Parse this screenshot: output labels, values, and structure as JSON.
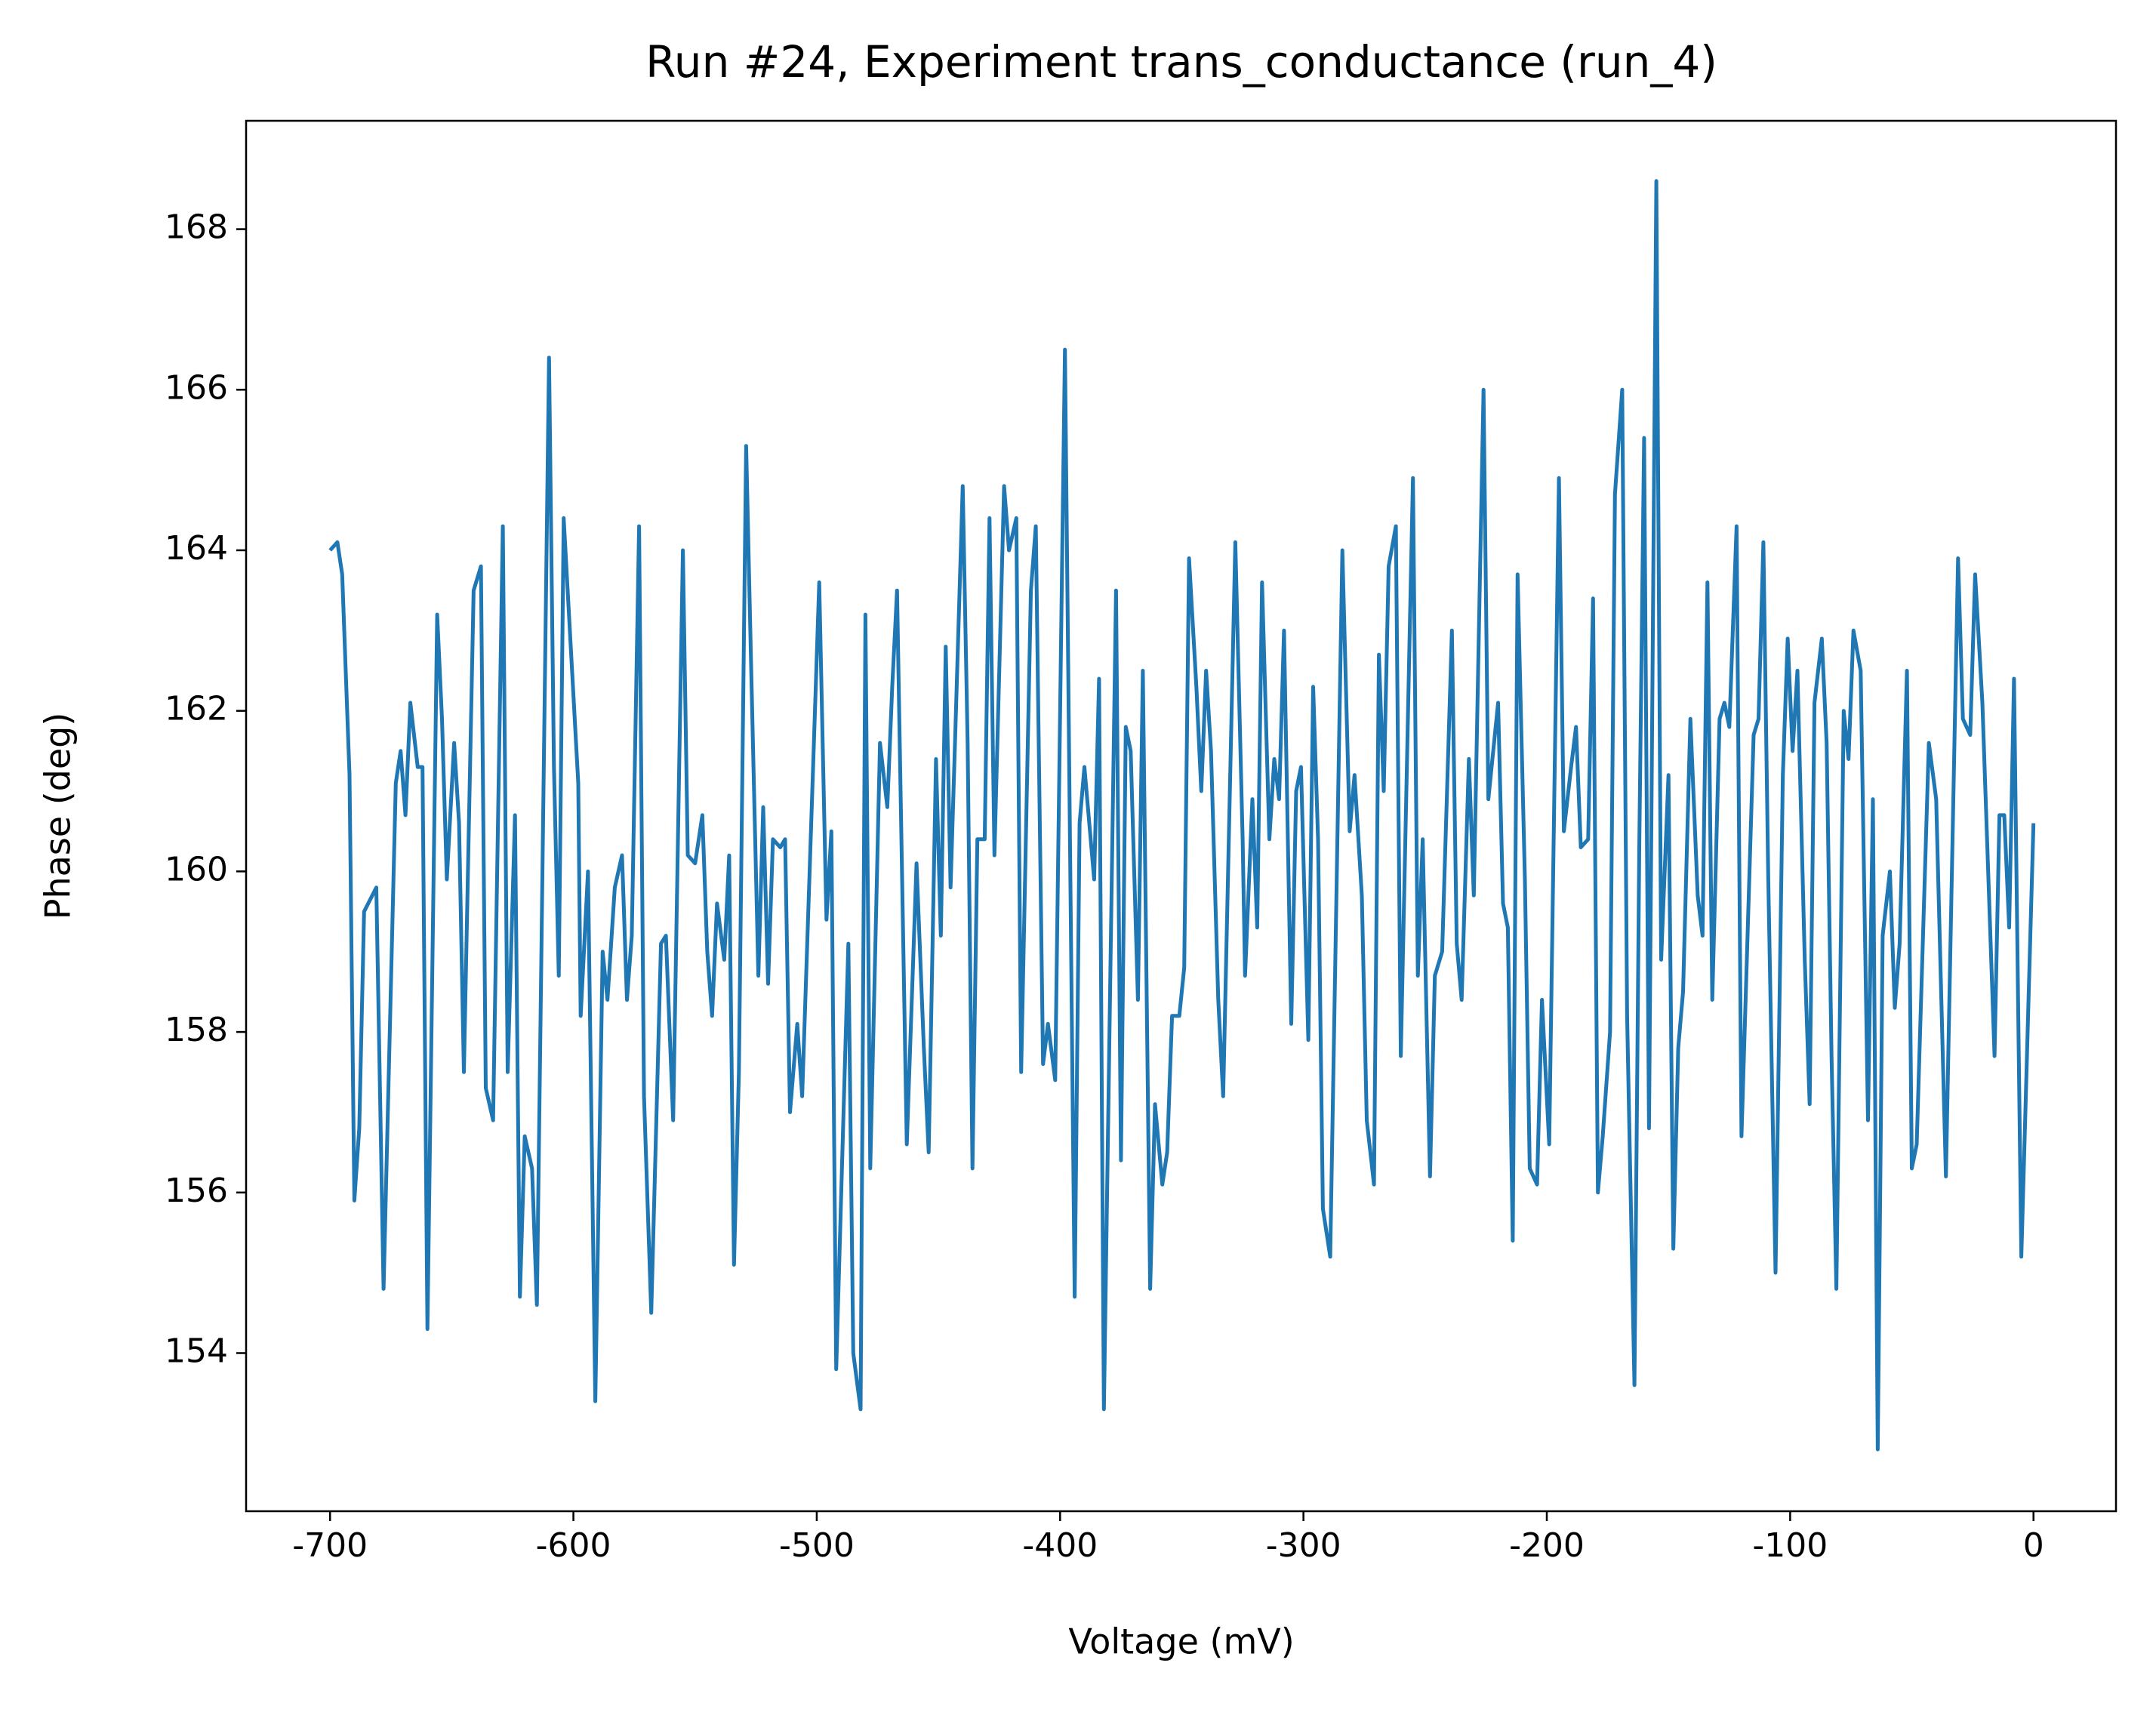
{
  "chart_data": {
    "type": "line",
    "title": "Run #24, Experiment trans_conductance (run_4)",
    "x_label": "Voltage (mV)",
    "y_label": "Phase (deg)",
    "color": "#1f77b4",
    "xlim": [
      -734.5,
      33.9
    ],
    "ylim": [
      152.03,
      169.35
    ],
    "xticks": [
      -700,
      -600,
      -500,
      -400,
      -300,
      -200,
      -100,
      0
    ],
    "yticks": [
      154,
      156,
      158,
      160,
      162,
      164,
      166,
      168
    ],
    "x": [
      -700,
      -697,
      -695,
      -692,
      -690,
      -688,
      -686,
      -681,
      -678,
      -673,
      -671,
      -669,
      -667,
      -664,
      -662,
      -660,
      -656,
      -654,
      -652,
      -649,
      -647,
      -645,
      -641,
      -638,
      -636,
      -633,
      -629,
      -627,
      -624,
      -622,
      -620,
      -617,
      -615,
      -610,
      -608,
      -606,
      -604,
      -598,
      -597,
      -594,
      -591,
      -588,
      -586,
      -583,
      -580,
      -578,
      -576,
      -573,
      -571,
      -568,
      -564,
      -562,
      -559,
      -555,
      -553,
      -550,
      -547,
      -545,
      -543,
      -541,
      -538,
      -536,
      -534,
      -532,
      -529,
      -527,
      -524,
      -522,
      -520,
      -518,
      -515,
      -513,
      -511,
      -508,
      -506,
      -499,
      -496,
      -494,
      -492,
      -487,
      -485,
      -482,
      -480,
      -478,
      -474,
      -471,
      -469,
      -467,
      -463,
      -459,
      -456,
      -454,
      -451,
      -449,
      -447,
      -445,
      -443,
      -440,
      -438,
      -436,
      -434,
      -431,
      -429,
      -427,
      -423,
      -421,
      -418,
      -416,
      -412,
      -410,
      -407,
      -405,
      -402,
      -398,
      -394,
      -392,
      -390,
      -386,
      -384,
      -382,
      -377,
      -375,
      -373,
      -371,
      -368,
      -366,
      -363,
      -361,
      -358,
      -356,
      -354,
      -351,
      -349,
      -347,
      -344,
      -342,
      -340,
      -338,
      -335,
      -333,
      -328,
      -325,
      -324,
      -321,
      -319,
      -317,
      -314,
      -312,
      -310,
      -308,
      -305,
      -303,
      -301,
      -298,
      -296,
      -294,
      -292,
      -289,
      -284,
      -281,
      -279,
      -276,
      -274,
      -271,
      -269,
      -267,
      -265,
      -262,
      -260,
      -255,
      -253,
      -251,
      -248,
      -246,
      -243,
      -239,
      -237,
      -235,
      -232,
      -230,
      -226,
      -224,
      -220,
      -218,
      -216,
      -214,
      -212,
      -209,
      -207,
      -204,
      -202,
      -199,
      -195,
      -193,
      -190,
      -188,
      -186,
      -183,
      -181,
      -179,
      -177,
      -174,
      -172,
      -169,
      -167,
      -164,
      -162,
      -160,
      -158,
      -155,
      -153,
      -150,
      -148,
      -146,
      -144,
      -141,
      -138,
      -136,
      -134,
      -132,
      -129,
      -127,
      -125,
      -122,
      -120,
      -115,
      -113,
      -111,
      -109,
      -106,
      -103,
      -101,
      -99,
      -97,
      -94,
      -92,
      -90,
      -87,
      -85,
      -83,
      -81,
      -78,
      -76,
      -74,
      -71,
      -68,
      -66,
      -64,
      -62,
      -59,
      -57,
      -55,
      -52,
      -50,
      -48,
      -43,
      -40,
      -36,
      -31,
      -29,
      -26,
      -24,
      -21,
      -16,
      -14,
      -12,
      -10,
      -8,
      -5,
      0
    ],
    "values": [
      164.0,
      164.1,
      163.7,
      161.2,
      155.9,
      156.8,
      159.5,
      159.8,
      154.8,
      161.1,
      161.5,
      160.7,
      162.1,
      161.3,
      161.3,
      154.3,
      163.2,
      161.9,
      159.9,
      161.6,
      160.6,
      157.5,
      163.5,
      163.8,
      157.3,
      156.9,
      164.3,
      157.5,
      160.7,
      154.7,
      156.7,
      156.3,
      154.6,
      166.4,
      161.3,
      158.7,
      164.4,
      161.1,
      158.2,
      160.0,
      153.4,
      159.0,
      158.4,
      159.8,
      160.2,
      158.4,
      159.2,
      164.3,
      157.2,
      154.5,
      159.1,
      159.2,
      156.9,
      164.0,
      160.2,
      160.1,
      160.7,
      159.0,
      158.2,
      159.6,
      158.9,
      160.2,
      155.1,
      157.5,
      165.3,
      162.6,
      158.7,
      160.8,
      158.6,
      160.4,
      160.3,
      160.4,
      157.0,
      158.1,
      157.2,
      163.6,
      159.4,
      160.5,
      153.8,
      159.1,
      154.0,
      153.3,
      163.2,
      156.3,
      161.6,
      160.8,
      162.3,
      163.5,
      156.6,
      160.1,
      157.8,
      156.5,
      161.4,
      159.2,
      162.8,
      159.8,
      161.8,
      164.8,
      161.6,
      156.3,
      160.4,
      160.4,
      164.4,
      160.2,
      164.8,
      164.0,
      164.4,
      157.5,
      163.5,
      164.3,
      157.6,
      158.1,
      157.4,
      166.5,
      154.7,
      160.6,
      161.3,
      159.9,
      162.4,
      153.3,
      163.5,
      156.4,
      161.8,
      161.5,
      158.4,
      162.5,
      154.8,
      157.1,
      156.1,
      156.5,
      158.2,
      158.2,
      158.8,
      163.9,
      162.3,
      161.0,
      162.5,
      161.5,
      158.4,
      157.2,
      164.1,
      160.4,
      158.7,
      160.9,
      159.3,
      163.6,
      160.4,
      161.4,
      160.9,
      163.0,
      158.1,
      161.0,
      161.3,
      157.9,
      162.3,
      160.4,
      155.8,
      155.2,
      164.0,
      160.5,
      161.2,
      159.7,
      156.9,
      156.1,
      162.7,
      161.0,
      163.8,
      164.3,
      157.7,
      164.9,
      158.7,
      160.4,
      156.2,
      158.7,
      159.0,
      163.0,
      159.1,
      158.4,
      161.4,
      159.7,
      166.0,
      160.9,
      162.1,
      159.6,
      159.3,
      155.4,
      163.7,
      159.9,
      156.3,
      156.1,
      158.4,
      156.6,
      164.9,
      160.5,
      161.3,
      161.8,
      160.3,
      160.4,
      163.4,
      156.0,
      156.7,
      158.0,
      164.7,
      166.0,
      158.2,
      153.6,
      160.3,
      165.4,
      156.8,
      168.6,
      158.9,
      161.2,
      155.3,
      157.8,
      158.5,
      161.9,
      159.7,
      159.2,
      163.6,
      158.4,
      161.9,
      162.1,
      161.8,
      164.3,
      156.7,
      161.7,
      161.9,
      164.1,
      159.9,
      155.0,
      161.2,
      162.9,
      161.5,
      162.5,
      158.9,
      157.1,
      162.1,
      162.9,
      161.6,
      157.7,
      154.8,
      162.0,
      161.4,
      163.0,
      162.5,
      156.9,
      160.9,
      152.8,
      159.2,
      160.0,
      158.3,
      159.1,
      162.5,
      156.3,
      156.6,
      161.6,
      160.9,
      156.2,
      163.9,
      161.9,
      161.7,
      163.7,
      162.1,
      157.7,
      160.7,
      160.7,
      159.3,
      162.4,
      155.2,
      160.6
    ]
  }
}
